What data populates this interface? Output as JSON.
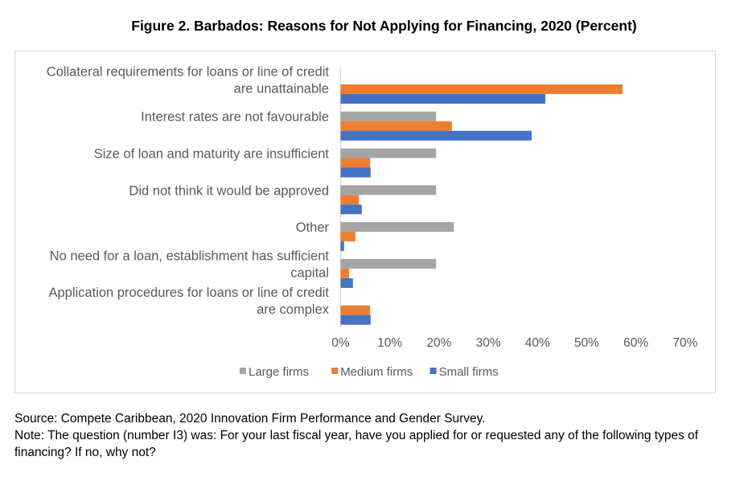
{
  "chart_data": {
    "type": "bar",
    "orientation": "horizontal",
    "title": "Figure 2. Barbados: Reasons for Not Applying for Financing, 2020 (Percent)",
    "categories": [
      [
        "Collateral requirements for loans or line of credit",
        "are unattainable"
      ],
      [
        "Interest rates are not favourable"
      ],
      [
        "Size of loan and maturity are insufficient"
      ],
      [
        "Did not think it would be approved"
      ],
      [
        "Other"
      ],
      [
        "No need for a loan, establishment has sufficient",
        "capital"
      ],
      [
        "Application procedures for loans or line of credit",
        "are complex"
      ]
    ],
    "series": [
      {
        "name": "Large firms",
        "color": "#a5a5a5",
        "values": [
          0,
          19.4,
          19.4,
          19.4,
          23.0,
          19.4,
          0
        ]
      },
      {
        "name": "Medium firms",
        "color": "#ed7d31",
        "values": [
          57.3,
          22.6,
          6.0,
          3.7,
          3.0,
          1.7,
          6.0
        ]
      },
      {
        "name": "Small firms",
        "color": "#4472c4",
        "values": [
          41.6,
          38.8,
          6.1,
          4.3,
          0.7,
          2.5,
          6.1
        ]
      }
    ],
    "xlim": [
      0,
      70
    ],
    "xticks": [
      "0%",
      "10%",
      "20%",
      "30%",
      "40%",
      "50%",
      "60%",
      "70%"
    ],
    "legend_position": "bottom",
    "grid": false
  },
  "source": "Source: Compete Caribbean, 2020 Innovation Firm Performance and Gender Survey.",
  "note": "Note: The question (number I3) was: For your last fiscal year, have you applied for or requested any of the following types of financing? If no, why not?"
}
